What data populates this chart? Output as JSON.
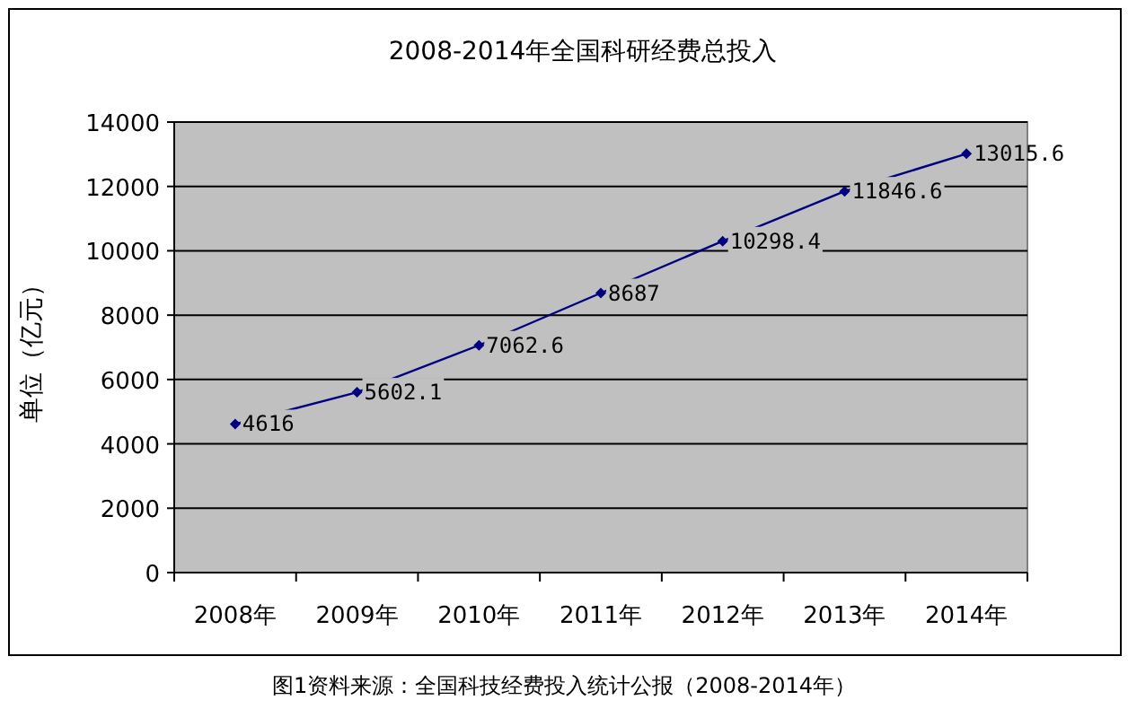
{
  "chart_data": {
    "type": "line",
    "title": "2008-2014年全国科研经费总投入",
    "ylabel": "单位（亿元）",
    "categories": [
      "2008年",
      "2009年",
      "2010年",
      "2011年",
      "2012年",
      "2013年",
      "2014年"
    ],
    "values": [
      4616,
      5602.1,
      7062.6,
      8687,
      10298.4,
      11846.6,
      13015.6
    ],
    "color": "#000080",
    "marker": "diamond",
    "data_labels": true,
    "grid": "y",
    "ylim": [
      0,
      14000
    ],
    "yticks": [
      0,
      2000,
      4000,
      6000,
      8000,
      10000,
      12000,
      14000
    ],
    "annotations": [
      "图1资料来源：全国科技经费投入统计公报（2008-2014年）"
    ]
  }
}
